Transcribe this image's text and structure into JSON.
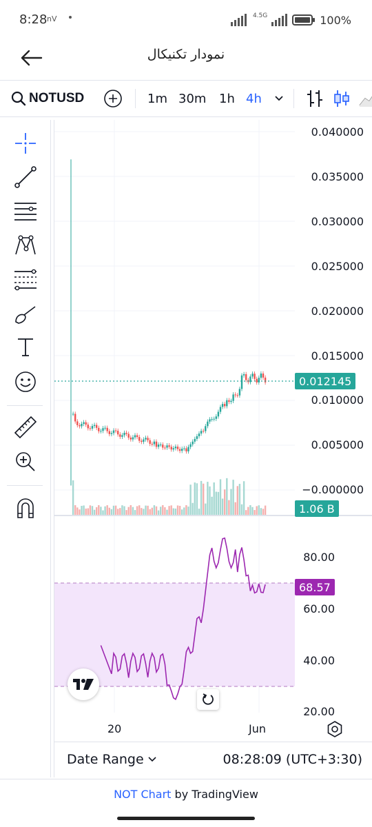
{
  "status_bar": {
    "time": "8:28",
    "nv": "nV",
    "network": "4.5G",
    "battery": "100%"
  },
  "header": {
    "title": "نمودار تکنیکال"
  },
  "toolbar": {
    "symbol": "NOTUSD",
    "intervals": [
      "1m",
      "30m",
      "1h",
      "4h"
    ],
    "active_interval": "4h",
    "icons": [
      "search-icon",
      "add-icon",
      "chevron-down-icon",
      "indicators-icon",
      "candles-icon",
      "area-chart-icon"
    ]
  },
  "left_tools": [
    "crosshair-icon",
    "trend-line-icon",
    "horizontal-lines-icon",
    "pattern-icon",
    "fib-icon",
    "brush-icon",
    "text-icon",
    "emoji-icon",
    "ruler-icon",
    "zoom-in-icon",
    "magnet-icon"
  ],
  "chart": {
    "price_axis": [
      "0.040000",
      "0.035000",
      "0.030000",
      "0.025000",
      "0.020000",
      "0.015000",
      "0.010000",
      "0.005000",
      "−0.000000"
    ],
    "last_price": "0.012145",
    "volume": "1.06 B",
    "rsi_axis": [
      "80.00",
      "60.00",
      "40.00",
      "20.00"
    ],
    "rsi_value": "68.57",
    "time_axis": [
      "20",
      "Jun"
    ],
    "colors": {
      "up": "#26a69a",
      "down": "#ef5350",
      "rsi_line": "#9c27b0",
      "rsi_band": "#f3e5fb",
      "tag_price": "#26a69a",
      "tag_volume": "#26a69a",
      "tag_rsi": "#9c27b0"
    }
  },
  "bottom_bar": {
    "date_range": "Date Range",
    "clock": "08:28:09 (UTC+3:30)"
  },
  "footer": {
    "link": "NOT Chart",
    "rest": " by TradingView"
  }
}
